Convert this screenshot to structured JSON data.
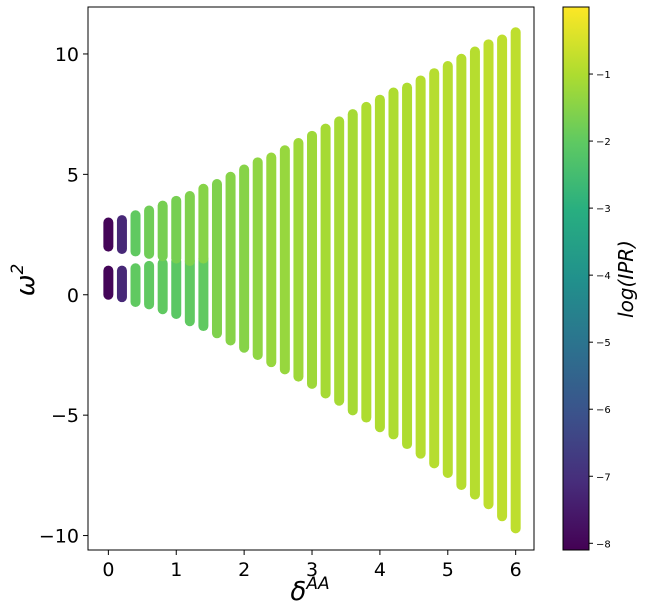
{
  "chart_data": {
    "type": "scatter",
    "title": "",
    "xlabel": "δ",
    "xlabel_sup": "AA",
    "ylabel": "ω",
    "ylabel_sup": "2",
    "xlim": [
      -0.3,
      6.27
    ],
    "ylim": [
      -10.6,
      11.95
    ],
    "xticks": [
      0,
      1,
      2,
      3,
      4,
      5,
      6
    ],
    "yticks": [
      -10,
      -5,
      0,
      5,
      10
    ],
    "ytick_labels": [
      "−10",
      "−5",
      "0",
      "5",
      "10"
    ],
    "grid": false,
    "colormap": "viridis",
    "colorbar": {
      "label": "log(IPR)",
      "range": [
        -8.1,
        0
      ],
      "ticks": [
        -1,
        -2,
        -3,
        -4,
        -5,
        -6,
        -7,
        -8
      ],
      "tick_labels": [
        "−1",
        "−2",
        "−3",
        "−4",
        "−5",
        "−6",
        "−7",
        "−8"
      ]
    },
    "columns": [
      {
        "x": 0.0,
        "bands": [
          [
            0.0,
            1.0,
            -8.0
          ],
          [
            2.0,
            3.0,
            -8.0
          ]
        ]
      },
      {
        "x": 0.2,
        "bands": [
          [
            -0.1,
            1.0,
            -7.2
          ],
          [
            1.9,
            3.1,
            -7.2
          ]
        ]
      },
      {
        "x": 0.4,
        "bands": [
          [
            -0.3,
            1.1,
            -2.0
          ],
          [
            1.8,
            3.3,
            -2.0
          ]
        ]
      },
      {
        "x": 0.6,
        "bands": [
          [
            -0.4,
            1.2,
            -2.0
          ],
          [
            1.7,
            3.5,
            -1.8
          ]
        ]
      },
      {
        "x": 0.8,
        "bands": [
          [
            -0.6,
            1.3,
            -2.0
          ],
          [
            1.6,
            3.7,
            -1.7
          ]
        ]
      },
      {
        "x": 1.0,
        "bands": [
          [
            -0.8,
            1.4,
            -2.1
          ],
          [
            1.5,
            3.9,
            -1.7
          ]
        ]
      },
      {
        "x": 1.2,
        "bands": [
          [
            -1.1,
            1.4,
            -2.0
          ],
          [
            1.4,
            4.1,
            -1.6
          ]
        ]
      },
      {
        "x": 1.4,
        "bands": [
          [
            -1.3,
            1.5,
            -2.0
          ],
          [
            1.5,
            4.4,
            -1.5
          ]
        ]
      },
      {
        "x": 1.6,
        "bands": [
          [
            -1.6,
            4.6,
            -1.6
          ]
        ]
      },
      {
        "x": 1.8,
        "bands": [
          [
            -1.9,
            4.9,
            -1.5
          ]
        ]
      },
      {
        "x": 2.0,
        "bands": [
          [
            -2.2,
            5.2,
            -1.5
          ]
        ]
      },
      {
        "x": 2.2,
        "bands": [
          [
            -2.5,
            5.5,
            -1.4
          ]
        ]
      },
      {
        "x": 2.4,
        "bands": [
          [
            -2.8,
            5.7,
            -1.3
          ]
        ]
      },
      {
        "x": 2.6,
        "bands": [
          [
            -3.1,
            6.0,
            -1.3
          ]
        ]
      },
      {
        "x": 2.8,
        "bands": [
          [
            -3.4,
            6.3,
            -1.2
          ]
        ]
      },
      {
        "x": 3.0,
        "bands": [
          [
            -3.7,
            6.6,
            -1.2
          ]
        ]
      },
      {
        "x": 3.2,
        "bands": [
          [
            -4.1,
            6.9,
            -1.1
          ]
        ]
      },
      {
        "x": 3.4,
        "bands": [
          [
            -4.4,
            7.2,
            -1.1
          ]
        ]
      },
      {
        "x": 3.6,
        "bands": [
          [
            -4.8,
            7.5,
            -1.1
          ]
        ]
      },
      {
        "x": 3.8,
        "bands": [
          [
            -5.1,
            7.8,
            -1.0
          ]
        ]
      },
      {
        "x": 4.0,
        "bands": [
          [
            -5.5,
            8.1,
            -1.0
          ]
        ]
      },
      {
        "x": 4.2,
        "bands": [
          [
            -5.8,
            8.4,
            -1.0
          ]
        ]
      },
      {
        "x": 4.4,
        "bands": [
          [
            -6.2,
            8.6,
            -1.0
          ]
        ]
      },
      {
        "x": 4.6,
        "bands": [
          [
            -6.6,
            8.9,
            -0.9
          ]
        ]
      },
      {
        "x": 4.8,
        "bands": [
          [
            -7.0,
            9.2,
            -0.9
          ]
        ]
      },
      {
        "x": 5.0,
        "bands": [
          [
            -7.4,
            9.5,
            -0.9
          ]
        ]
      },
      {
        "x": 5.2,
        "bands": [
          [
            -7.9,
            9.8,
            -0.9
          ]
        ]
      },
      {
        "x": 5.4,
        "bands": [
          [
            -8.3,
            10.1,
            -0.9
          ]
        ]
      },
      {
        "x": 5.6,
        "bands": [
          [
            -8.7,
            10.4,
            -0.8
          ]
        ]
      },
      {
        "x": 5.8,
        "bands": [
          [
            -9.2,
            10.6,
            -0.8
          ]
        ]
      },
      {
        "x": 6.0,
        "bands": [
          [
            -9.7,
            10.9,
            -0.8
          ]
        ]
      }
    ]
  }
}
